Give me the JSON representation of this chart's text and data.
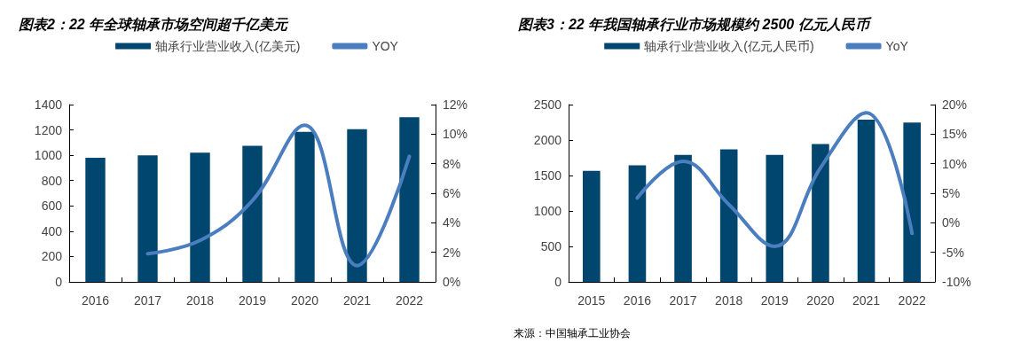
{
  "chart_data": [
    {
      "type": "bar",
      "title": "图表2：22 年全球轴承市场空间超千亿美元",
      "categories": [
        "2016",
        "2017",
        "2018",
        "2019",
        "2020",
        "2021",
        "2022"
      ],
      "series": [
        {
          "name": "轴承行业营业收入(亿美元)",
          "color": "#00466e",
          "values": [
            980,
            1000,
            1020,
            1075,
            1185,
            1205,
            1300
          ]
        },
        {
          "name": "YOY",
          "type": "line",
          "axis": "y2",
          "color": "#4a7ebf",
          "values": [
            null,
            1.9,
            2.8,
            5.5,
            10.6,
            1.1,
            8.5
          ]
        }
      ],
      "ylim": [
        0,
        1400
      ],
      "yticks": [
        0,
        200,
        400,
        600,
        800,
        1000,
        1200,
        1400
      ],
      "y2lim": [
        0,
        12
      ],
      "y2ticks": [
        {
          "value": 0,
          "label": "0%"
        },
        {
          "value": 2,
          "label": "2%"
        },
        {
          "value": 4,
          "label": "4%"
        },
        {
          "value": 6,
          "label": "6%"
        },
        {
          "value": 8,
          "label": "8%"
        },
        {
          "value": 10,
          "label": "10%"
        },
        {
          "value": 12,
          "label": "12%"
        }
      ],
      "grid": false,
      "legend": "top",
      "marker": "none",
      "line_style": "solid"
    },
    {
      "type": "bar",
      "title": "图表3：22 年我国轴承行业市场规模约 2500 亿元人民币",
      "categories": [
        "2015",
        "2016",
        "2017",
        "2018",
        "2019",
        "2020",
        "2021",
        "2022"
      ],
      "series": [
        {
          "name": "轴承行业营业收入(亿元人民币)",
          "color": "#00466e",
          "values": [
            1565,
            1643,
            1791,
            1870,
            1791,
            1943,
            2287,
            2248
          ]
        },
        {
          "name": "YoY",
          "type": "line",
          "axis": "y2",
          "color": "#4a7ebf",
          "values": [
            null,
            4.2,
            10.4,
            3.1,
            -4.0,
            9.3,
            18.6,
            -1.8
          ]
        }
      ],
      "ylim": [
        0,
        2500
      ],
      "yticks": [
        0,
        500,
        1000,
        1500,
        2000,
        2500
      ],
      "y2lim": [
        -10,
        20
      ],
      "y2ticks": [
        {
          "value": -10,
          "label": "-10%"
        },
        {
          "value": -5,
          "label": "-5%"
        },
        {
          "value": 0,
          "label": "0%"
        },
        {
          "value": 5,
          "label": "5%"
        },
        {
          "value": 10,
          "label": "10%"
        },
        {
          "value": 15,
          "label": "15%"
        },
        {
          "value": 20,
          "label": "20%"
        }
      ],
      "grid": false,
      "legend": "top",
      "marker": "none",
      "line_style": "solid",
      "annotations": [
        "来源：中国轴承工业协会"
      ]
    }
  ]
}
